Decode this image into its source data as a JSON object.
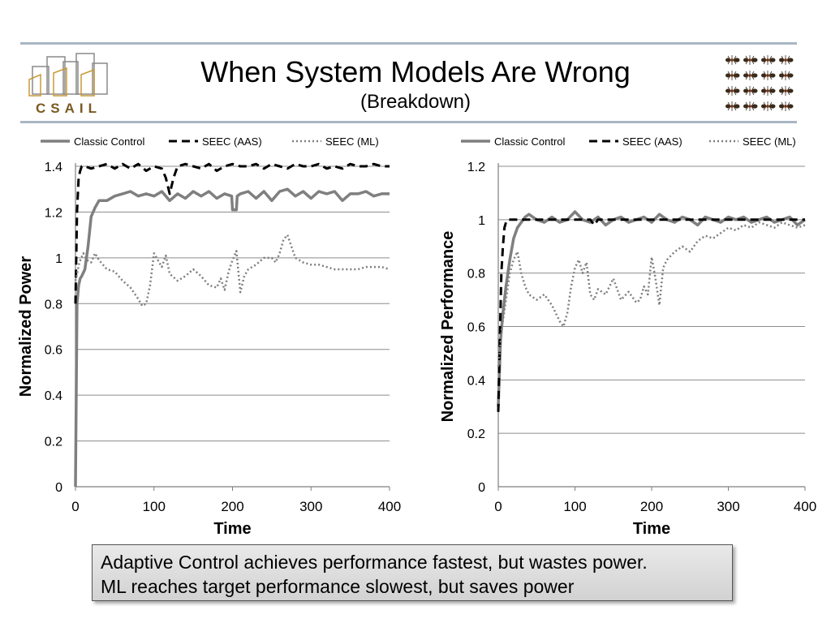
{
  "slide": {
    "title": "When System Models Are Wrong",
    "subtitle": "(Breakdown)",
    "logo_text": "CSAIL",
    "callout_lines": [
      "Adaptive Control achieves performance fastest, but wastes power.",
      "ML reaches target performance slowest, but saves power"
    ]
  },
  "chart_data": [
    {
      "type": "line",
      "xlabel": "Time",
      "ylabel": "Normalized Power",
      "xlim": [
        0,
        400
      ],
      "ylim": [
        0,
        1.4
      ],
      "xticks": [
        "0",
        "100",
        "200",
        "300",
        "400"
      ],
      "yticks": [
        "0",
        "0.2",
        "0.4",
        "0.6",
        "0.8",
        "1",
        "1.2",
        "1.4"
      ],
      "grid": true,
      "legend": "top",
      "series": [
        {
          "name": "Classic Control",
          "color": "#7f7f7f",
          "dash": "solid",
          "x": [
            0,
            2,
            4,
            6,
            8,
            12,
            16,
            20,
            25,
            30,
            40,
            50,
            60,
            70,
            80,
            90,
            100,
            110,
            120,
            130,
            140,
            150,
            160,
            170,
            180,
            190,
            199,
            200,
            205,
            206,
            210,
            220,
            230,
            240,
            250,
            260,
            270,
            280,
            290,
            300,
            310,
            320,
            330,
            340,
            350,
            360,
            370,
            380,
            390,
            400
          ],
          "y": [
            0,
            0.8,
            0.88,
            0.91,
            0.92,
            0.95,
            1.05,
            1.18,
            1.22,
            1.25,
            1.25,
            1.27,
            1.28,
            1.29,
            1.27,
            1.28,
            1.27,
            1.29,
            1.25,
            1.28,
            1.26,
            1.29,
            1.27,
            1.29,
            1.26,
            1.28,
            1.27,
            1.21,
            1.21,
            1.27,
            1.28,
            1.29,
            1.26,
            1.29,
            1.25,
            1.29,
            1.3,
            1.27,
            1.29,
            1.26,
            1.29,
            1.28,
            1.29,
            1.25,
            1.28,
            1.28,
            1.29,
            1.27,
            1.28,
            1.28
          ]
        },
        {
          "name": "SEEC (AAS)",
          "color": "#000000",
          "dash": "dashed",
          "x": [
            0,
            2,
            4,
            6,
            8,
            12,
            20,
            30,
            40,
            50,
            60,
            70,
            80,
            90,
            100,
            110,
            115,
            120,
            125,
            130,
            140,
            150,
            160,
            170,
            180,
            190,
            200,
            210,
            220,
            230,
            240,
            250,
            260,
            270,
            280,
            290,
            300,
            310,
            320,
            330,
            340,
            350,
            360,
            370,
            380,
            390,
            400
          ],
          "y": [
            0.8,
            1.2,
            1.35,
            1.38,
            1.4,
            1.4,
            1.39,
            1.4,
            1.41,
            1.39,
            1.41,
            1.39,
            1.41,
            1.38,
            1.4,
            1.39,
            1.35,
            1.28,
            1.35,
            1.4,
            1.41,
            1.4,
            1.39,
            1.41,
            1.38,
            1.4,
            1.41,
            1.4,
            1.4,
            1.41,
            1.39,
            1.41,
            1.4,
            1.39,
            1.41,
            1.4,
            1.4,
            1.41,
            1.39,
            1.4,
            1.39,
            1.41,
            1.4,
            1.4,
            1.41,
            1.4,
            1.4
          ]
        },
        {
          "name": "SEEC (ML)",
          "color": "#7f7f7f",
          "dash": "dotted",
          "x": [
            0,
            2,
            5,
            10,
            15,
            20,
            25,
            30,
            40,
            50,
            60,
            70,
            80,
            85,
            90,
            95,
            100,
            105,
            110,
            115,
            120,
            130,
            140,
            150,
            160,
            170,
            180,
            185,
            190,
            195,
            200,
            205,
            210,
            215,
            220,
            230,
            240,
            250,
            255,
            260,
            265,
            270,
            275,
            280,
            290,
            300,
            310,
            320,
            330,
            340,
            350,
            360,
            370,
            380,
            390,
            400
          ],
          "y": [
            0.9,
            0.93,
            0.98,
            1.02,
            0.99,
            0.98,
            1.02,
            0.99,
            0.95,
            0.94,
            0.9,
            0.87,
            0.82,
            0.79,
            0.8,
            0.88,
            1.02,
            0.99,
            0.96,
            1.01,
            0.93,
            0.9,
            0.92,
            0.95,
            0.92,
            0.88,
            0.87,
            0.91,
            0.86,
            0.94,
            0.99,
            1.03,
            0.85,
            0.92,
            0.95,
            0.97,
            1.0,
            1.0,
            0.98,
            1.02,
            1.08,
            1.1,
            1.05,
            1.0,
            0.98,
            0.97,
            0.97,
            0.96,
            0.95,
            0.95,
            0.95,
            0.95,
            0.96,
            0.96,
            0.96,
            0.95
          ]
        }
      ]
    },
    {
      "type": "line",
      "xlabel": "Time",
      "ylabel": "Normalized Performance",
      "xlim": [
        0,
        400
      ],
      "ylim": [
        0,
        1.2
      ],
      "xticks": [
        "0",
        "100",
        "200",
        "300",
        "400"
      ],
      "yticks": [
        "0",
        "0.2",
        "0.4",
        "0.6",
        "0.8",
        "1",
        "1.2"
      ],
      "grid": true,
      "legend": "top",
      "series": [
        {
          "name": "Classic Control",
          "color": "#7f7f7f",
          "dash": "solid",
          "x": [
            0,
            3,
            6,
            10,
            15,
            20,
            25,
            30,
            35,
            40,
            50,
            60,
            70,
            80,
            90,
            100,
            110,
            120,
            130,
            140,
            150,
            160,
            170,
            180,
            190,
            200,
            210,
            220,
            230,
            240,
            250,
            260,
            270,
            280,
            290,
            300,
            310,
            320,
            330,
            340,
            350,
            360,
            370,
            380,
            390,
            400
          ],
          "y": [
            0.3,
            0.55,
            0.65,
            0.75,
            0.85,
            0.93,
            0.97,
            0.99,
            1.01,
            1.02,
            1.0,
            0.99,
            1.01,
            0.99,
            1.0,
            1.03,
            1.0,
            0.99,
            1.01,
            0.98,
            1.0,
            1.01,
            0.99,
            1.0,
            1.01,
            0.99,
            1.02,
            1.0,
            0.99,
            1.01,
            1.0,
            0.98,
            1.01,
            1.0,
            0.99,
            1.01,
            1.0,
            1.01,
            0.99,
            1.0,
            1.01,
            0.99,
            1.0,
            1.01,
            0.98,
            1.0
          ]
        },
        {
          "name": "SEEC (AAS)",
          "color": "#000000",
          "dash": "dashed",
          "x": [
            0,
            2,
            4,
            6,
            8,
            10,
            12,
            15,
            20,
            30,
            40,
            60,
            80,
            100,
            120,
            125,
            130,
            140,
            160,
            180,
            200,
            220,
            240,
            260,
            280,
            300,
            320,
            340,
            360,
            380,
            400
          ],
          "y": [
            0.28,
            0.55,
            0.8,
            0.9,
            0.97,
            0.99,
            1.0,
            1.0,
            1.0,
            1.0,
            1.0,
            1.0,
            1.0,
            1.0,
            1.0,
            0.98,
            1.0,
            1.0,
            1.0,
            1.0,
            1.0,
            1.0,
            1.0,
            1.0,
            1.0,
            1.0,
            1.0,
            1.0,
            1.0,
            1.0,
            1.0
          ]
        },
        {
          "name": "SEEC (ML)",
          "color": "#7f7f7f",
          "dash": "dotted",
          "x": [
            0,
            5,
            10,
            15,
            20,
            25,
            30,
            35,
            40,
            50,
            60,
            70,
            80,
            85,
            90,
            95,
            100,
            105,
            110,
            115,
            120,
            125,
            130,
            140,
            150,
            160,
            170,
            180,
            185,
            190,
            195,
            200,
            205,
            210,
            215,
            220,
            230,
            240,
            250,
            260,
            270,
            280,
            290,
            300,
            310,
            320,
            330,
            340,
            350,
            360,
            370,
            380,
            390,
            400
          ],
          "y": [
            0.45,
            0.6,
            0.7,
            0.8,
            0.85,
            0.88,
            0.8,
            0.75,
            0.72,
            0.7,
            0.72,
            0.68,
            0.62,
            0.6,
            0.65,
            0.75,
            0.82,
            0.85,
            0.8,
            0.84,
            0.72,
            0.7,
            0.74,
            0.72,
            0.78,
            0.7,
            0.73,
            0.69,
            0.7,
            0.75,
            0.72,
            0.86,
            0.78,
            0.68,
            0.82,
            0.85,
            0.88,
            0.9,
            0.88,
            0.92,
            0.94,
            0.93,
            0.95,
            0.97,
            0.96,
            0.98,
            0.97,
            0.99,
            0.98,
            0.97,
            0.99,
            0.98,
            0.97,
            0.98
          ]
        }
      ]
    }
  ]
}
